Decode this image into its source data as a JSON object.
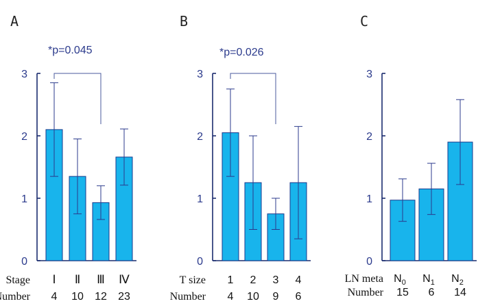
{
  "chart_data": [
    {
      "type": "bar",
      "panel": "A",
      "row_labels": [
        "Stage",
        "Number"
      ],
      "categories": [
        "Ⅰ",
        "Ⅱ",
        "Ⅲ",
        "Ⅳ"
      ],
      "numbers": [
        "4",
        "10",
        "12",
        "23"
      ],
      "values": [
        2.1,
        1.35,
        0.93,
        1.66
      ],
      "errors": [
        0.75,
        0.6,
        0.27,
        0.45
      ],
      "ylim": [
        0,
        3
      ],
      "yticks": [
        "0",
        "1",
        "2",
        "3"
      ],
      "significance": {
        "text": "*p=0.045",
        "from": 0,
        "to": 2
      }
    },
    {
      "type": "bar",
      "panel": "B",
      "row_labels": [
        "T size",
        "Number"
      ],
      "categories": [
        "1",
        "2",
        "3",
        "4"
      ],
      "numbers": [
        "4",
        "10",
        "9",
        "6"
      ],
      "values": [
        2.05,
        1.25,
        0.75,
        1.25
      ],
      "errors": [
        0.7,
        0.75,
        0.25,
        0.9
      ],
      "ylim": [
        0,
        3
      ],
      "yticks": [
        "0",
        "1",
        "2",
        "3"
      ],
      "significance": {
        "text": "*p=0.026",
        "from": 0,
        "to": 2
      }
    },
    {
      "type": "bar",
      "panel": "C",
      "row_labels": [
        "LN meta",
        "Number"
      ],
      "categories": [
        "N0",
        "N1",
        "N2"
      ],
      "numbers": [
        "15",
        "6",
        "14"
      ],
      "values": [
        0.97,
        1.15,
        1.9
      ],
      "errors": [
        0.34,
        0.41,
        0.68
      ],
      "ylim": [
        0,
        3
      ],
      "yticks": [
        "0",
        "1",
        "2",
        "3"
      ],
      "significance": null
    }
  ]
}
